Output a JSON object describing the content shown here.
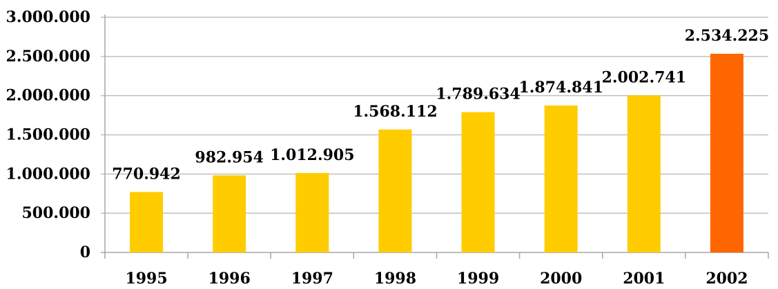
{
  "chart_data": {
    "type": "bar",
    "title": "",
    "xlabel": "",
    "ylabel": "",
    "categories": [
      "1995",
      "1996",
      "1997",
      "1998",
      "1999",
      "2000",
      "2001",
      "2002"
    ],
    "values": [
      770942,
      982954,
      1012905,
      1568112,
      1789634,
      1874841,
      2002741,
      2534225
    ],
    "value_labels": [
      "770.942",
      "982.954",
      "1.012.905",
      "1.568.112",
      "1.789.634",
      "1.874.841",
      "2.002.741",
      "2.534.225"
    ],
    "ylim": [
      0,
      3000000
    ],
    "y_ticks": [
      0,
      500000,
      1000000,
      1500000,
      2000000,
      2500000,
      3000000
    ],
    "y_tick_labels": [
      "0",
      "500.000",
      "1.000.000",
      "1.500.000",
      "2.000.000",
      "2.500.000",
      "3.000.000"
    ],
    "grid": true,
    "legend": "none",
    "colors": {
      "bar": "#FFCC00",
      "highlight_bar": "#FF6600",
      "grid": "#BFBFBF",
      "axis": "#A6A6A6"
    },
    "highlight_index": 7
  }
}
